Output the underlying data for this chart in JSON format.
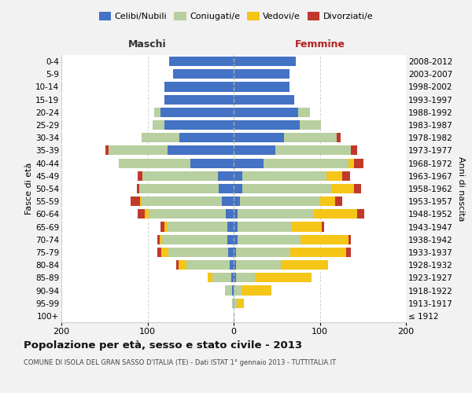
{
  "age_groups": [
    "100+",
    "95-99",
    "90-94",
    "85-89",
    "80-84",
    "75-79",
    "70-74",
    "65-69",
    "60-64",
    "55-59",
    "50-54",
    "45-49",
    "40-44",
    "35-39",
    "30-34",
    "25-29",
    "20-24",
    "15-19",
    "10-14",
    "5-9",
    "0-4"
  ],
  "birth_years": [
    "≤ 1912",
    "1913-1917",
    "1918-1922",
    "1923-1927",
    "1928-1932",
    "1933-1937",
    "1938-1942",
    "1943-1947",
    "1948-1952",
    "1953-1957",
    "1958-1962",
    "1963-1967",
    "1968-1972",
    "1973-1977",
    "1978-1982",
    "1983-1987",
    "1988-1992",
    "1993-1997",
    "1998-2002",
    "2003-2007",
    "2008-2012"
  ],
  "male_celibi": [
    0,
    0,
    2,
    3,
    5,
    6,
    7,
    7,
    9,
    14,
    17,
    18,
    50,
    77,
    63,
    80,
    85,
    80,
    80,
    70,
    75
  ],
  "male_coniugati": [
    0,
    2,
    8,
    22,
    50,
    70,
    76,
    70,
    90,
    93,
    93,
    88,
    83,
    68,
    44,
    14,
    7,
    0,
    0,
    0,
    0
  ],
  "male_vedovi": [
    0,
    0,
    0,
    5,
    9,
    8,
    3,
    3,
    4,
    2,
    0,
    0,
    0,
    0,
    0,
    0,
    0,
    0,
    0,
    0,
    0
  ],
  "male_divorziati": [
    0,
    0,
    0,
    0,
    3,
    5,
    3,
    5,
    8,
    11,
    2,
    5,
    0,
    4,
    0,
    0,
    0,
    0,
    0,
    0,
    0
  ],
  "fem_nubili": [
    0,
    0,
    0,
    3,
    3,
    3,
    5,
    5,
    5,
    7,
    10,
    10,
    35,
    48,
    58,
    77,
    75,
    70,
    65,
    65,
    72
  ],
  "fem_coniugate": [
    0,
    4,
    9,
    22,
    52,
    63,
    73,
    63,
    88,
    93,
    103,
    98,
    98,
    88,
    62,
    24,
    14,
    0,
    0,
    0,
    0
  ],
  "fem_vedove": [
    0,
    8,
    35,
    65,
    55,
    65,
    55,
    34,
    50,
    18,
    27,
    18,
    7,
    0,
    0,
    0,
    0,
    0,
    0,
    0,
    0
  ],
  "fem_divorziate": [
    0,
    0,
    0,
    0,
    0,
    5,
    3,
    3,
    9,
    8,
    8,
    9,
    11,
    7,
    4,
    0,
    0,
    0,
    0,
    0,
    0
  ],
  "color_celibi": "#4472c4",
  "color_coniugati": "#b8cfa0",
  "color_vedovi": "#f5c518",
  "color_divorziati": "#c0392b",
  "legend_labels": [
    "Celibi/Nubili",
    "Coniugati/e",
    "Vedovi/e",
    "Divorziati/e"
  ],
  "title": "Popolazione per età, sesso e stato civile - 2013",
  "subtitle": "COMUNE DI ISOLA DEL GRAN SASSO D'ITALIA (TE) - Dati ISTAT 1° gennaio 2013 - TUTTITALIA.IT",
  "maschi_label": "Maschi",
  "femmine_label": "Femmine",
  "ylabel_left": "Fasce di età",
  "ylabel_right": "Anni di nascita",
  "xlim": 200,
  "bg_color": "#f2f2f2",
  "plot_bg": "#ffffff",
  "grid_color": "#d0d0d0"
}
